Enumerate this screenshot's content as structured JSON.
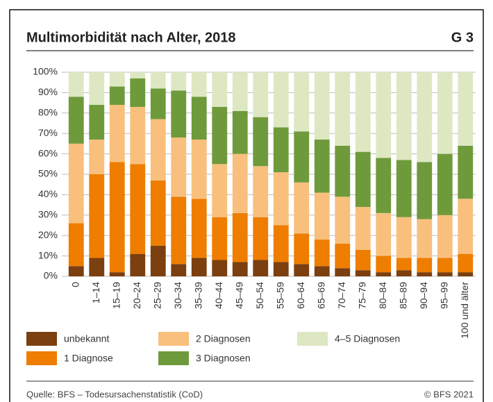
{
  "chart_data": {
    "type": "stacked_bar",
    "title": "Multimorbidität nach Alter, 2018",
    "chart_id": "G 3",
    "source": "Quelle: BFS – Todesursachenstatistik (CoD)",
    "copyright": "© BFS 2021",
    "categories": [
      "0",
      "1–14",
      "15–19",
      "20–24",
      "25–29",
      "30–34",
      "35–39",
      "40–44",
      "45–49",
      "50–54",
      "55–59",
      "60–64",
      "65–69",
      "70–74",
      "75–79",
      "80–84",
      "85–89",
      "90–94",
      "95–99",
      "100 und älter"
    ],
    "series": [
      {
        "name": "unbekannt",
        "color": "#7b3f10",
        "values": [
          5,
          9,
          2,
          11,
          15,
          6,
          9,
          8,
          7,
          8,
          7,
          6,
          5,
          4,
          3,
          2,
          3,
          2,
          2,
          2
        ]
      },
      {
        "name": "1 Diagnose",
        "color": "#ee7d00",
        "values": [
          21,
          41,
          54,
          44,
          32,
          33,
          29,
          21,
          24,
          21,
          18,
          15,
          13,
          12,
          10,
          8,
          6,
          7,
          7,
          9
        ]
      },
      {
        "name": "2 Diagnosen",
        "color": "#f8c07c",
        "values": [
          39,
          17,
          28,
          28,
          30,
          29,
          29,
          26,
          29,
          25,
          26,
          25,
          23,
          23,
          21,
          21,
          20,
          19,
          21,
          27
        ]
      },
      {
        "name": "3 Diagnosen",
        "color": "#6f9a3c",
        "values": [
          23,
          17,
          9,
          14,
          15,
          23,
          21,
          28,
          21,
          24,
          22,
          25,
          26,
          25,
          27,
          27,
          28,
          28,
          30,
          26
        ]
      },
      {
        "name": "4–5 Diagnosen",
        "color": "#dde8c2",
        "values": [
          12,
          16,
          7,
          3,
          8,
          9,
          12,
          17,
          19,
          22,
          27,
          29,
          33,
          36,
          39,
          42,
          43,
          44,
          40,
          36
        ]
      }
    ],
    "ylim": [
      0,
      100
    ],
    "yticks": [
      {
        "value": 0,
        "label": "0%"
      },
      {
        "value": 10,
        "label": "10%"
      },
      {
        "value": 20,
        "label": "20%"
      },
      {
        "value": 30,
        "label": "30%"
      },
      {
        "value": 40,
        "label": "40%"
      },
      {
        "value": 50,
        "label": "50%"
      },
      {
        "value": 60,
        "label": "60%"
      },
      {
        "value": 70,
        "label": "70%"
      },
      {
        "value": 80,
        "label": "80%"
      },
      {
        "value": 90,
        "label": "90%"
      },
      {
        "value": 100,
        "label": "100%"
      }
    ],
    "grid": true
  }
}
